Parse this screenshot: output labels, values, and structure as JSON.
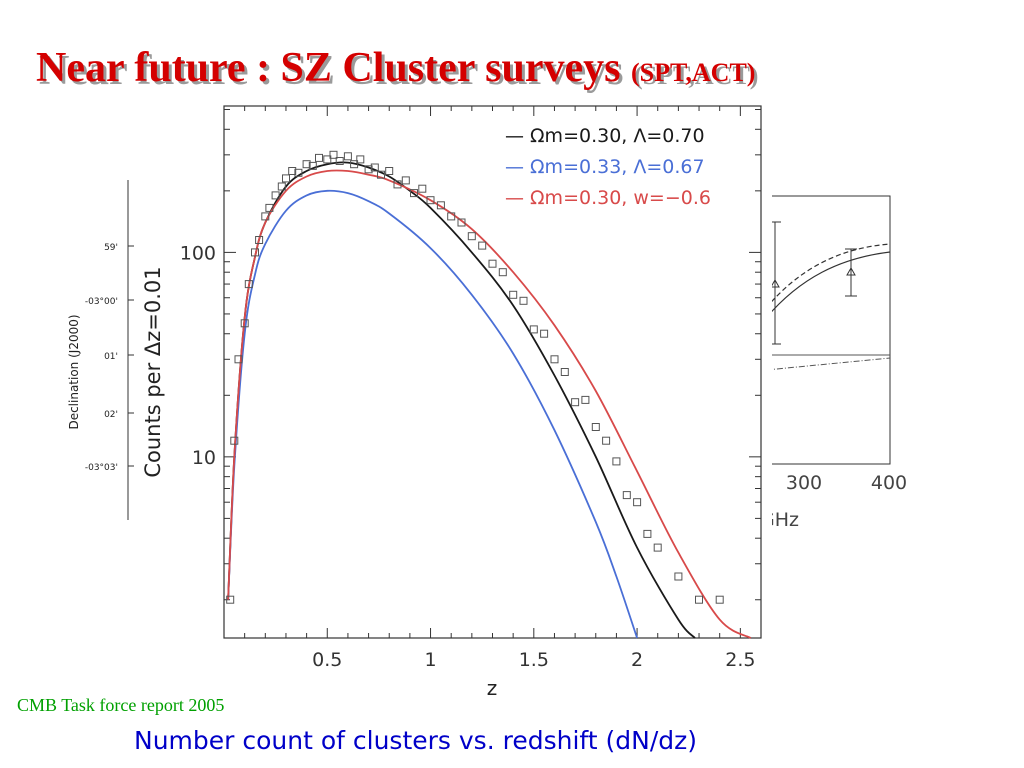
{
  "slide": {
    "title": "Near future : SZ Cluster surveys",
    "title_paren": "(SPT,ACT)",
    "credit": "CMB Task force report 2005",
    "caption": "Number count of clusters vs. redshift (dN/dz)"
  },
  "colors": {
    "title": "#d40000",
    "credit": "#00a000",
    "caption": "#0000c8",
    "black": "#1a1a1a",
    "blue": "#4a6fd6",
    "red": "#d84a4a",
    "points": "#555555"
  },
  "left_panel": {
    "ylabel": "Declination (J2000)",
    "ticks": [
      "59'",
      "-03°00'",
      "01'",
      "02'",
      "-03°03'"
    ]
  },
  "right_panel": {
    "xticks": [
      "300",
      "400"
    ],
    "xlabel": "GHz"
  },
  "chart_data": {
    "type": "line",
    "xlabel": "z",
    "ylabel": "Counts per Δz=0.01",
    "yscale": "log",
    "xlim": [
      0,
      2.6
    ],
    "ylim": [
      1.3,
      520
    ],
    "xticks": [
      0.5,
      1,
      1.5,
      2,
      2.5
    ],
    "xtick_labels": [
      "0.5",
      "1",
      "1.5",
      "2",
      "2.5"
    ],
    "yticks": [
      10,
      100
    ],
    "ytick_labels": [
      "10",
      "100"
    ],
    "legend_position": "top-right",
    "series": [
      {
        "name": "Ωm=0.30, Λ=0.70",
        "legend_label": "— Ωm=0.30, Λ=0.70",
        "color": "#1a1a1a",
        "x": [
          0.02,
          0.05,
          0.1,
          0.15,
          0.2,
          0.3,
          0.4,
          0.5,
          0.6,
          0.7,
          0.8,
          0.9,
          1.0,
          1.2,
          1.4,
          1.6,
          1.8,
          2.0,
          2.2,
          2.28
        ],
        "y": [
          2,
          10,
          48,
          95,
          140,
          210,
          250,
          270,
          275,
          260,
          235,
          200,
          165,
          100,
          55,
          25,
          10,
          3.6,
          1.6,
          1.3
        ]
      },
      {
        "name": "Ωm=0.33, Λ=0.67",
        "legend_label": "— Ωm=0.33, Λ=0.67",
        "color": "#4a6fd6",
        "x": [
          0.02,
          0.05,
          0.1,
          0.15,
          0.2,
          0.3,
          0.4,
          0.5,
          0.6,
          0.7,
          0.8,
          1.0,
          1.2,
          1.4,
          1.6,
          1.8,
          1.9,
          2.0
        ],
        "y": [
          2,
          9,
          40,
          78,
          110,
          160,
          190,
          200,
          195,
          178,
          155,
          105,
          62,
          32,
          13.5,
          4.8,
          2.6,
          1.3
        ]
      },
      {
        "name": "Ωm=0.30, w=-0.6",
        "legend_label": "— Ωm=0.30, w=−0.6",
        "color": "#d84a4a",
        "x": [
          0.02,
          0.05,
          0.1,
          0.15,
          0.2,
          0.3,
          0.4,
          0.5,
          0.6,
          0.7,
          0.8,
          1.0,
          1.2,
          1.4,
          1.6,
          1.8,
          2.0,
          2.2,
          2.4,
          2.55
        ],
        "y": [
          2,
          10,
          48,
          95,
          140,
          200,
          235,
          250,
          250,
          240,
          225,
          180,
          130,
          80,
          44,
          21,
          8.5,
          3.4,
          1.6,
          1.3
        ]
      }
    ],
    "points": {
      "name": "simulated counts",
      "x": [
        0.03,
        0.05,
        0.07,
        0.1,
        0.12,
        0.15,
        0.17,
        0.2,
        0.22,
        0.25,
        0.28,
        0.3,
        0.33,
        0.36,
        0.4,
        0.43,
        0.46,
        0.5,
        0.53,
        0.56,
        0.6,
        0.63,
        0.66,
        0.7,
        0.73,
        0.76,
        0.8,
        0.84,
        0.88,
        0.92,
        0.96,
        1.0,
        1.05,
        1.1,
        1.15,
        1.2,
        1.25,
        1.3,
        1.35,
        1.4,
        1.45,
        1.5,
        1.55,
        1.6,
        1.65,
        1.7,
        1.75,
        1.8,
        1.85,
        1.9,
        1.95,
        2.0,
        2.05,
        2.1,
        2.2,
        2.3,
        2.4
      ],
      "y": [
        2,
        12,
        30,
        45,
        70,
        100,
        115,
        150,
        165,
        190,
        210,
        230,
        250,
        245,
        270,
        265,
        290,
        285,
        300,
        280,
        295,
        270,
        285,
        255,
        260,
        240,
        250,
        215,
        225,
        195,
        205,
        180,
        170,
        150,
        140,
        120,
        108,
        88,
        80,
        62,
        58,
        42,
        40,
        30,
        26,
        18.5,
        19,
        14,
        12,
        9.5,
        6.5,
        6,
        4.2,
        3.6,
        2.6,
        2,
        2
      ]
    }
  }
}
